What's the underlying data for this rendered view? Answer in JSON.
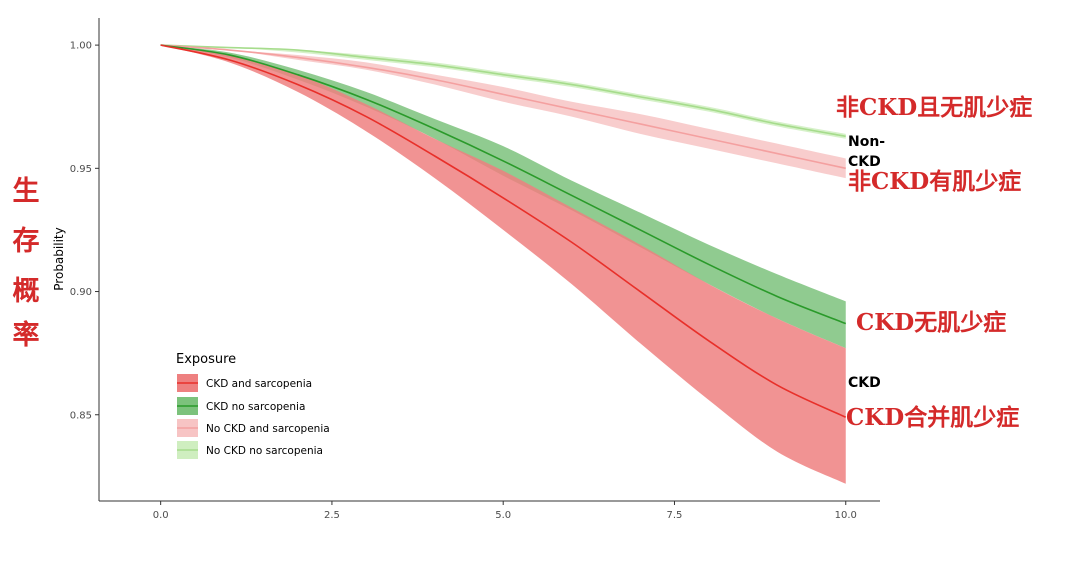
{
  "chart_data": {
    "type": "line",
    "ylabel": "Probability",
    "xlim": [
      -0.9,
      10.5
    ],
    "ylim": [
      0.815,
      1.011
    ],
    "x_ticks": [
      "0.0",
      "2.5",
      "5.0",
      "7.5",
      "10.0"
    ],
    "y_ticks": [
      "0.85",
      "0.90",
      "0.95",
      "1.00"
    ],
    "x_tick_values": [
      0,
      2.5,
      5,
      7.5,
      10
    ],
    "y_tick_values": [
      0.85,
      0.9,
      0.95,
      1.0
    ],
    "grid": false,
    "x": [
      0,
      1,
      2,
      3,
      4,
      5,
      6,
      7,
      8,
      9,
      10
    ],
    "legend": {
      "title": "Exposure",
      "placement": "bottom-left"
    },
    "series": [
      {
        "name": "CKD and sarcopenia",
        "color": "#e8302a",
        "band_color": "#ee8080",
        "values": [
          1.0,
          0.994,
          0.984,
          0.971,
          0.955,
          0.938,
          0.92,
          0.9,
          0.88,
          0.862,
          0.849
        ],
        "lower": [
          1.0,
          0.993,
          0.981,
          0.965,
          0.946,
          0.925,
          0.903,
          0.879,
          0.856,
          0.835,
          0.822
        ],
        "upper": [
          1.0,
          0.996,
          0.988,
          0.976,
          0.962,
          0.949,
          0.934,
          0.919,
          0.903,
          0.889,
          0.877
        ]
      },
      {
        "name": "CKD no sarcopenia",
        "color": "#2a9a2a",
        "band_color": "#7cc27c",
        "values": [
          1.0,
          0.996,
          0.988,
          0.978,
          0.966,
          0.953,
          0.939,
          0.925,
          0.911,
          0.898,
          0.887
        ],
        "lower": [
          1.0,
          0.995,
          0.986,
          0.975,
          0.962,
          0.947,
          0.933,
          0.918,
          0.903,
          0.889,
          0.877
        ],
        "upper": [
          1.0,
          0.997,
          0.99,
          0.981,
          0.97,
          0.959,
          0.945,
          0.932,
          0.919,
          0.907,
          0.896
        ]
      },
      {
        "name": "No CKD and sarcopenia",
        "color": "#f4a0a0",
        "band_color": "#f7c4c4",
        "values": [
          1.0,
          0.998,
          0.995,
          0.991,
          0.986,
          0.98,
          0.974,
          0.968,
          0.962,
          0.956,
          0.95
        ],
        "lower": [
          1.0,
          0.998,
          0.994,
          0.99,
          0.984,
          0.977,
          0.971,
          0.964,
          0.958,
          0.952,
          0.946
        ],
        "upper": [
          1.0,
          0.998,
          0.996,
          0.993,
          0.988,
          0.983,
          0.977,
          0.972,
          0.966,
          0.96,
          0.954
        ]
      },
      {
        "name": "No CKD no sarcopenia",
        "color": "#a6dc8c",
        "band_color": "#cfeec0",
        "values": [
          1.0,
          0.999,
          0.998,
          0.995,
          0.992,
          0.988,
          0.984,
          0.979,
          0.974,
          0.968,
          0.963
        ],
        "lower": [
          1.0,
          0.999,
          0.997,
          0.994,
          0.991,
          0.987,
          0.983,
          0.978,
          0.973,
          0.967,
          0.962
        ],
        "upper": [
          1.0,
          0.999,
          0.998,
          0.996,
          0.993,
          0.989,
          0.985,
          0.98,
          0.975,
          0.969,
          0.964
        ]
      }
    ],
    "annotations": [
      {
        "id": "anno-nockd-nosarc",
        "text": "非CKD且无肌少症",
        "style": "red"
      },
      {
        "id": "anno-non",
        "text": "Non-",
        "style": "black"
      },
      {
        "id": "anno-ckd-1",
        "text": "CKD",
        "style": "black"
      },
      {
        "id": "anno-nockd-sarc",
        "text": "非CKD有肌少症",
        "style": "red"
      },
      {
        "id": "anno-ckd-nosarc",
        "text": "CKD无肌少症",
        "style": "red"
      },
      {
        "id": "anno-ckd-2",
        "text": "CKD",
        "style": "black"
      },
      {
        "id": "anno-ckd-sarc",
        "text": "CKD合并肌少症",
        "style": "red"
      }
    ],
    "side_label": [
      "生",
      "存",
      "概",
      "率"
    ]
  }
}
